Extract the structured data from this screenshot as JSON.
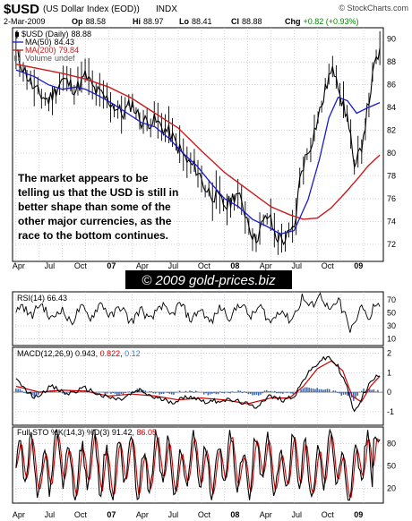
{
  "header": {
    "symbol": "$USD",
    "name": "(US Dollar Index (EOD))",
    "exchange": "INDX",
    "credit": "© StockCharts.com",
    "date": "2-Mar-2009",
    "quote": {
      "op_label": "Op",
      "op": "88.58",
      "hi_label": "Hi",
      "hi": "88.97",
      "lo_label": "Lo",
      "lo": "88.41",
      "cl_label": "Cl",
      "cl": "88.88",
      "chg_label": "Chg",
      "chg": "+0.82 (+0.93%)"
    }
  },
  "colors": {
    "price": "#000000",
    "ma50": "#1a1acc",
    "ma200": "#cc1a1a",
    "grid": "#b8b8c8",
    "neg": "#cc0000",
    "sig": "#2a7fd0",
    "bar": "#3a62a8",
    "panel_bg": "#ffffff"
  },
  "watermark": "© 2009 gold-prices.biz",
  "annotation": [
    "The market appears to be",
    "telling us that the USD is still in",
    "better shape than some of the",
    "other major currencies, as the",
    "race to the bottom continues."
  ],
  "x_axis": {
    "labels": [
      "Apr",
      "Jul",
      "Oct",
      "07",
      "Apr",
      "Jul",
      "Oct",
      "08",
      "Apr",
      "Jul",
      "Oct",
      "09"
    ],
    "bold": [
      "07",
      "08",
      "09"
    ]
  },
  "chart_data": [
    {
      "type": "line",
      "title": "$USD (Daily) 88.88",
      "legend": [
        {
          "name": "$USD (Daily)",
          "value": "88.88",
          "icon": "candlestick-icon"
        },
        {
          "name": "MA(50)",
          "value": "84.43"
        },
        {
          "name": "MA(200)",
          "value": "79.84"
        },
        {
          "name": "Volume",
          "value": "undef"
        }
      ],
      "x_labels": [
        "Apr 06",
        "Jul 06",
        "Oct 06",
        "Jan 07",
        "Apr 07",
        "Jul 07",
        "Oct 07",
        "Jan 08",
        "Apr 08",
        "Jul 08",
        "Oct 08",
        "Jan 09"
      ],
      "ylim": [
        70.5,
        91
      ],
      "y_ticks": [
        72,
        74,
        76,
        78,
        80,
        82,
        84,
        86,
        88,
        90
      ],
      "price_path": [
        [
          0,
          88.8
        ],
        [
          0.8,
          85.5
        ],
        [
          1.4,
          84.6
        ],
        [
          2,
          86.5
        ],
        [
          2.6,
          85.6
        ],
        [
          3,
          86.8
        ],
        [
          3.4,
          85.5
        ],
        [
          4,
          84.6
        ],
        [
          4.6,
          83.4
        ],
        [
          5,
          84.4
        ],
        [
          5.4,
          82.8
        ],
        [
          6,
          82.8
        ],
        [
          6.6,
          81.8
        ],
        [
          7,
          80.5
        ],
        [
          7.4,
          79.2
        ],
        [
          7.8,
          78.6
        ],
        [
          8.2,
          76.8
        ],
        [
          8.6,
          76.2
        ],
        [
          9.1,
          75.3
        ],
        [
          9.5,
          76.6
        ],
        [
          9.9,
          74.8
        ],
        [
          10.3,
          72.3
        ],
        [
          10.6,
          73.6
        ],
        [
          10.9,
          74.6
        ],
        [
          11.2,
          72.7
        ],
        [
          11.6,
          72.4
        ],
        [
          12,
          73.3
        ],
        [
          12.3,
          78.5
        ],
        [
          12.7,
          80.7
        ],
        [
          13.2,
          84.3
        ],
        [
          13.5,
          86.7
        ],
        [
          13.8,
          87.3
        ],
        [
          14.1,
          84.2
        ],
        [
          14.4,
          82.5
        ],
        [
          14.6,
          78.2
        ],
        [
          14.9,
          80.6
        ],
        [
          15.2,
          84.3
        ],
        [
          15.5,
          87.9
        ],
        [
          15.7,
          88.88
        ]
      ],
      "ma50": [
        [
          0,
          87.3
        ],
        [
          0.8,
          86.7
        ],
        [
          1.4,
          86
        ],
        [
          2,
          85.6
        ],
        [
          2.6,
          85.8
        ],
        [
          3,
          85.6
        ],
        [
          3.6,
          85
        ],
        [
          4.2,
          84.3
        ],
        [
          4.8,
          83.5
        ],
        [
          5.4,
          82.7
        ],
        [
          6,
          82.3
        ],
        [
          6.6,
          81.3
        ],
        [
          7.2,
          80
        ],
        [
          7.8,
          78.9
        ],
        [
          8.4,
          77.4
        ],
        [
          9,
          76
        ],
        [
          9.6,
          75.3
        ],
        [
          10.2,
          74.2
        ],
        [
          10.8,
          73.6
        ],
        [
          11.4,
          72.9
        ],
        [
          12,
          73.2
        ],
        [
          12.6,
          75.9
        ],
        [
          13.1,
          79.5
        ],
        [
          13.5,
          83.1
        ],
        [
          13.9,
          84.9
        ],
        [
          14.3,
          84.6
        ],
        [
          14.7,
          83.5
        ],
        [
          15.2,
          84
        ],
        [
          15.7,
          84.43
        ]
      ],
      "ma200": [
        [
          0,
          87.8
        ],
        [
          1,
          87.4
        ],
        [
          2,
          87
        ],
        [
          3,
          86.5
        ],
        [
          4,
          85.8
        ],
        [
          5,
          84.8
        ],
        [
          6,
          83.5
        ],
        [
          7,
          82.2
        ],
        [
          8,
          80.2
        ],
        [
          9,
          78.3
        ],
        [
          10,
          76.8
        ],
        [
          11,
          75.3
        ],
        [
          11.8,
          74.6
        ],
        [
          12.4,
          74.2
        ],
        [
          13,
          74.3
        ],
        [
          13.6,
          75.2
        ],
        [
          14.2,
          76.5
        ],
        [
          14.8,
          77.9
        ],
        [
          15.2,
          78.9
        ],
        [
          15.7,
          79.84
        ]
      ]
    },
    {
      "type": "line",
      "title": "RSI(14) 66.43",
      "series": [
        {
          "name": "RSI(14)",
          "last": 66.43
        }
      ],
      "ylim": [
        0,
        82
      ],
      "y_ticks": [
        10,
        30,
        50,
        70
      ],
      "reference_lines": [
        30,
        50,
        70
      ]
    },
    {
      "type": "line",
      "title": "MACD(12,26,9) 0.943, 0.822, 0.120",
      "series": [
        {
          "name": "MACD",
          "last": 0.943
        },
        {
          "name": "Signal",
          "last": 0.822
        },
        {
          "name": "Histogram",
          "last": 0.12
        }
      ],
      "ylim": [
        -1.7,
        2.3
      ],
      "y_ticks": [
        -1,
        0,
        1,
        2
      ],
      "path": [
        [
          0,
          0.6
        ],
        [
          0.8,
          -0.3
        ],
        [
          1.5,
          0.3
        ],
        [
          2.2,
          -0.1
        ],
        [
          3,
          0.2
        ],
        [
          3.7,
          -0.2
        ],
        [
          4.5,
          -0.4
        ],
        [
          5.3,
          0.1
        ],
        [
          6,
          -0.3
        ],
        [
          6.8,
          -0.5
        ],
        [
          7.5,
          -0.2
        ],
        [
          8.2,
          -0.5
        ],
        [
          9,
          -0.4
        ],
        [
          9.7,
          -0.5
        ],
        [
          10.3,
          -0.8
        ],
        [
          10.9,
          -0.2
        ],
        [
          11.5,
          -0.4
        ],
        [
          12,
          -0.2
        ],
        [
          12.5,
          0.8
        ],
        [
          13.1,
          1.6
        ],
        [
          13.5,
          1.8
        ],
        [
          13.9,
          1.3
        ],
        [
          14.3,
          0.2
        ],
        [
          14.6,
          -1.1
        ],
        [
          14.9,
          -0.3
        ],
        [
          15.3,
          0.5
        ],
        [
          15.7,
          0.94
        ]
      ],
      "signal": [
        [
          0,
          0.3
        ],
        [
          1,
          0
        ],
        [
          2,
          0.1
        ],
        [
          3,
          0.05
        ],
        [
          4,
          -0.2
        ],
        [
          5,
          -0.1
        ],
        [
          6,
          -0.2
        ],
        [
          7,
          -0.4
        ],
        [
          8,
          -0.3
        ],
        [
          9,
          -0.4
        ],
        [
          10,
          -0.6
        ],
        [
          11,
          -0.3
        ],
        [
          11.8,
          -0.3
        ],
        [
          12.4,
          0.3
        ],
        [
          13,
          1.2
        ],
        [
          13.6,
          1.6
        ],
        [
          14.1,
          1.1
        ],
        [
          14.5,
          -0.2
        ],
        [
          14.9,
          -0.5
        ],
        [
          15.3,
          0.3
        ],
        [
          15.7,
          0.82
        ]
      ]
    },
    {
      "type": "line",
      "title": "Full STO %K(14,3) %D(3) 91.42, 86.05",
      "series": [
        {
          "name": "%K(14,3)",
          "last": 91.42
        },
        {
          "name": "%D(3)",
          "last": 86.05
        }
      ],
      "ylim": [
        0,
        102
      ],
      "y_ticks": [
        20,
        50,
        80
      ],
      "reference_lines": [
        20,
        80
      ]
    }
  ]
}
